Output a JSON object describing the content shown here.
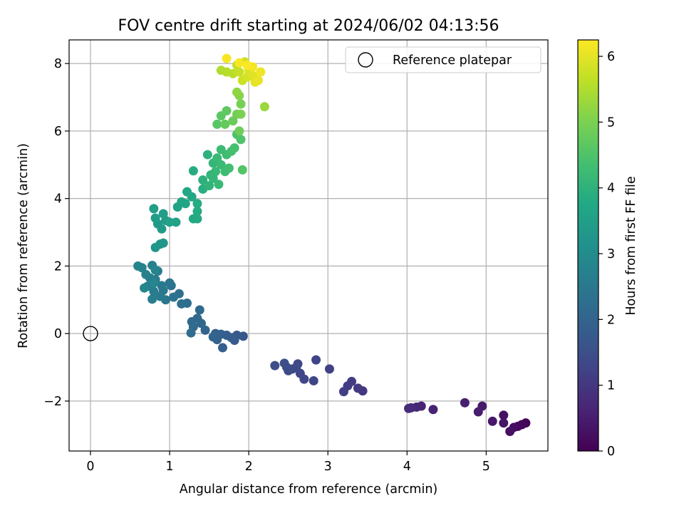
{
  "chart_data": {
    "type": "scatter",
    "title": "FOV centre drift starting at 2024/06/02 04:13:56",
    "xlabel": "Angular distance from reference (arcmin)",
    "ylabel": "Rotation from reference (arcmin)",
    "colorbar_label": "Hours from first FF file",
    "xlim": [
      -0.27,
      5.78
    ],
    "ylim": [
      -3.48,
      8.7
    ],
    "clim": [
      0,
      6.25
    ],
    "x_ticks": [
      0,
      1,
      2,
      3,
      4,
      5
    ],
    "y_ticks": [
      -2,
      0,
      2,
      4,
      6,
      8
    ],
    "colorbar_ticks": [
      0,
      1,
      2,
      3,
      4,
      5,
      6
    ],
    "colormap": "viridis",
    "grid": true,
    "legend": {
      "position": "top-right",
      "entries": [
        "Reference platepar"
      ]
    },
    "reference_point": {
      "x": 0,
      "y": 0
    },
    "points": [
      {
        "x": 5.5,
        "y": -2.65,
        "h": 0.05
      },
      {
        "x": 5.45,
        "y": -2.7,
        "h": 0.1
      },
      {
        "x": 5.4,
        "y": -2.75,
        "h": 0.15
      },
      {
        "x": 5.35,
        "y": -2.78,
        "h": 0.2
      },
      {
        "x": 5.3,
        "y": -2.9,
        "h": 0.25
      },
      {
        "x": 5.22,
        "y": -2.42,
        "h": 0.3
      },
      {
        "x": 5.22,
        "y": -2.65,
        "h": 0.35
      },
      {
        "x": 5.08,
        "y": -2.6,
        "h": 0.4
      },
      {
        "x": 4.95,
        "y": -2.15,
        "h": 0.45
      },
      {
        "x": 4.9,
        "y": -2.32,
        "h": 0.5
      },
      {
        "x": 4.73,
        "y": -2.05,
        "h": 0.55
      },
      {
        "x": 4.33,
        "y": -2.25,
        "h": 0.6
      },
      {
        "x": 4.18,
        "y": -2.15,
        "h": 0.65
      },
      {
        "x": 4.12,
        "y": -2.18,
        "h": 0.7
      },
      {
        "x": 4.05,
        "y": -2.2,
        "h": 0.75
      },
      {
        "x": 4.02,
        "y": -2.22,
        "h": 0.8
      },
      {
        "x": 3.44,
        "y": -1.7,
        "h": 1.0
      },
      {
        "x": 3.38,
        "y": -1.62,
        "h": 1.05
      },
      {
        "x": 3.3,
        "y": -1.42,
        "h": 1.1
      },
      {
        "x": 3.25,
        "y": -1.55,
        "h": 1.12
      },
      {
        "x": 3.2,
        "y": -1.72,
        "h": 1.15
      },
      {
        "x": 3.02,
        "y": -1.05,
        "h": 1.2
      },
      {
        "x": 2.85,
        "y": -0.78,
        "h": 1.25
      },
      {
        "x": 2.82,
        "y": -1.4,
        "h": 1.28
      },
      {
        "x": 2.7,
        "y": -1.35,
        "h": 1.3
      },
      {
        "x": 2.65,
        "y": -1.18,
        "h": 1.33
      },
      {
        "x": 2.62,
        "y": -0.9,
        "h": 1.36
      },
      {
        "x": 2.6,
        "y": -1.0,
        "h": 1.38
      },
      {
        "x": 2.55,
        "y": -1.05,
        "h": 1.4
      },
      {
        "x": 2.5,
        "y": -1.1,
        "h": 1.42
      },
      {
        "x": 2.48,
        "y": -1.0,
        "h": 1.45
      },
      {
        "x": 2.45,
        "y": -0.88,
        "h": 1.47
      },
      {
        "x": 2.33,
        "y": -0.95,
        "h": 1.5
      },
      {
        "x": 1.93,
        "y": -0.08,
        "h": 1.7
      },
      {
        "x": 1.85,
        "y": -0.05,
        "h": 1.75
      },
      {
        "x": 1.82,
        "y": -0.2,
        "h": 1.78
      },
      {
        "x": 1.78,
        "y": -0.12,
        "h": 1.82
      },
      {
        "x": 1.72,
        "y": -0.05,
        "h": 1.85
      },
      {
        "x": 1.67,
        "y": -0.42,
        "h": 1.88
      },
      {
        "x": 1.65,
        "y": -0.02,
        "h": 1.9
      },
      {
        "x": 1.6,
        "y": -0.18,
        "h": 1.93
      },
      {
        "x": 1.58,
        "y": 0.0,
        "h": 1.96
      },
      {
        "x": 1.55,
        "y": -0.1,
        "h": 2.0
      },
      {
        "x": 1.45,
        "y": 0.1,
        "h": 2.05
      },
      {
        "x": 1.4,
        "y": 0.3,
        "h": 2.08
      },
      {
        "x": 1.38,
        "y": 0.7,
        "h": 2.1
      },
      {
        "x": 1.35,
        "y": 0.45,
        "h": 2.12
      },
      {
        "x": 1.3,
        "y": 0.2,
        "h": 2.15
      },
      {
        "x": 1.28,
        "y": 0.35,
        "h": 2.18
      },
      {
        "x": 1.27,
        "y": 0.02,
        "h": 2.2
      },
      {
        "x": 1.22,
        "y": 0.9,
        "h": 2.25
      },
      {
        "x": 1.15,
        "y": 0.88,
        "h": 2.28
      },
      {
        "x": 1.12,
        "y": 1.18,
        "h": 2.32
      },
      {
        "x": 1.05,
        "y": 1.08,
        "h": 2.35
      },
      {
        "x": 1.02,
        "y": 1.42,
        "h": 2.4
      },
      {
        "x": 1.0,
        "y": 1.5,
        "h": 2.42
      },
      {
        "x": 0.95,
        "y": 1.0,
        "h": 2.45
      },
      {
        "x": 0.92,
        "y": 1.28,
        "h": 2.48
      },
      {
        "x": 0.9,
        "y": 1.42,
        "h": 2.5
      },
      {
        "x": 0.88,
        "y": 1.1,
        "h": 2.52
      },
      {
        "x": 0.85,
        "y": 1.85,
        "h": 2.55
      },
      {
        "x": 0.82,
        "y": 1.6,
        "h": 2.58
      },
      {
        "x": 0.8,
        "y": 1.25,
        "h": 2.6
      },
      {
        "x": 0.78,
        "y": 1.02,
        "h": 2.62
      },
      {
        "x": 0.75,
        "y": 1.65,
        "h": 2.65
      },
      {
        "x": 0.72,
        "y": 1.4,
        "h": 2.68
      },
      {
        "x": 0.78,
        "y": 2.02,
        "h": 2.7
      },
      {
        "x": 0.7,
        "y": 1.75,
        "h": 2.72
      },
      {
        "x": 0.65,
        "y": 1.95,
        "h": 2.75
      },
      {
        "x": 0.6,
        "y": 2.0,
        "h": 2.78
      },
      {
        "x": 0.82,
        "y": 1.88,
        "h": 2.8
      },
      {
        "x": 0.68,
        "y": 1.35,
        "h": 2.82
      },
      {
        "x": 0.8,
        "y": 1.5,
        "h": 2.85
      },
      {
        "x": 0.82,
        "y": 2.55,
        "h": 3.2
      },
      {
        "x": 0.88,
        "y": 2.65,
        "h": 3.25
      },
      {
        "x": 0.92,
        "y": 2.68,
        "h": 3.3
      },
      {
        "x": 0.85,
        "y": 3.25,
        "h": 3.35
      },
      {
        "x": 0.9,
        "y": 3.1,
        "h": 3.4
      },
      {
        "x": 0.95,
        "y": 3.35,
        "h": 3.42
      },
      {
        "x": 0.82,
        "y": 3.42,
        "h": 3.45
      },
      {
        "x": 0.8,
        "y": 3.7,
        "h": 3.48
      },
      {
        "x": 0.92,
        "y": 3.55,
        "h": 3.5
      },
      {
        "x": 1.0,
        "y": 3.3,
        "h": 3.55
      },
      {
        "x": 1.08,
        "y": 3.3,
        "h": 3.58
      },
      {
        "x": 1.1,
        "y": 3.75,
        "h": 3.6
      },
      {
        "x": 1.15,
        "y": 3.9,
        "h": 3.63
      },
      {
        "x": 1.2,
        "y": 3.85,
        "h": 3.66
      },
      {
        "x": 1.22,
        "y": 4.2,
        "h": 3.7
      },
      {
        "x": 1.28,
        "y": 4.05,
        "h": 3.73
      },
      {
        "x": 1.3,
        "y": 3.4,
        "h": 3.76
      },
      {
        "x": 1.35,
        "y": 3.4,
        "h": 3.78
      },
      {
        "x": 1.35,
        "y": 3.62,
        "h": 3.8
      },
      {
        "x": 1.35,
        "y": 3.85,
        "h": 3.82
      },
      {
        "x": 1.3,
        "y": 4.82,
        "h": 3.85
      },
      {
        "x": 1.42,
        "y": 4.28,
        "h": 3.9
      },
      {
        "x": 1.42,
        "y": 4.55,
        "h": 3.95
      },
      {
        "x": 1.48,
        "y": 5.3,
        "h": 4.0
      },
      {
        "x": 1.5,
        "y": 4.38,
        "h": 4.05
      },
      {
        "x": 1.52,
        "y": 4.7,
        "h": 4.08
      },
      {
        "x": 1.55,
        "y": 5.05,
        "h": 4.1
      },
      {
        "x": 1.55,
        "y": 4.6,
        "h": 4.12
      },
      {
        "x": 1.58,
        "y": 4.8,
        "h": 4.15
      },
      {
        "x": 1.6,
        "y": 5.2,
        "h": 4.18
      },
      {
        "x": 1.62,
        "y": 4.42,
        "h": 4.2
      },
      {
        "x": 1.65,
        "y": 5.0,
        "h": 4.22
      },
      {
        "x": 1.65,
        "y": 5.45,
        "h": 4.25
      },
      {
        "x": 1.7,
        "y": 4.8,
        "h": 4.28
      },
      {
        "x": 1.72,
        "y": 5.3,
        "h": 4.3
      },
      {
        "x": 1.75,
        "y": 4.9,
        "h": 4.33
      },
      {
        "x": 1.78,
        "y": 5.4,
        "h": 4.36
      },
      {
        "x": 1.82,
        "y": 5.5,
        "h": 4.4
      },
      {
        "x": 1.85,
        "y": 5.9,
        "h": 4.45
      },
      {
        "x": 1.9,
        "y": 5.75,
        "h": 4.5
      },
      {
        "x": 1.92,
        "y": 4.85,
        "h": 4.55
      },
      {
        "x": 1.6,
        "y": 6.2,
        "h": 4.6
      },
      {
        "x": 1.65,
        "y": 6.45,
        "h": 4.65
      },
      {
        "x": 1.72,
        "y": 6.6,
        "h": 4.7
      },
      {
        "x": 1.7,
        "y": 6.2,
        "h": 4.75
      },
      {
        "x": 1.8,
        "y": 6.3,
        "h": 4.8
      },
      {
        "x": 1.88,
        "y": 6.0,
        "h": 4.85
      },
      {
        "x": 1.85,
        "y": 6.5,
        "h": 4.9
      },
      {
        "x": 1.9,
        "y": 6.8,
        "h": 4.95
      },
      {
        "x": 1.9,
        "y": 6.5,
        "h": 5.0
      },
      {
        "x": 1.88,
        "y": 7.05,
        "h": 5.1
      },
      {
        "x": 1.85,
        "y": 7.15,
        "h": 5.2
      },
      {
        "x": 2.2,
        "y": 6.72,
        "h": 5.3
      },
      {
        "x": 1.65,
        "y": 7.8,
        "h": 5.5
      },
      {
        "x": 1.72,
        "y": 7.75,
        "h": 5.55
      },
      {
        "x": 1.8,
        "y": 7.7,
        "h": 5.6
      },
      {
        "x": 1.85,
        "y": 7.95,
        "h": 5.65
      },
      {
        "x": 1.88,
        "y": 7.75,
        "h": 5.7
      },
      {
        "x": 1.92,
        "y": 7.5,
        "h": 5.75
      },
      {
        "x": 1.95,
        "y": 8.05,
        "h": 5.8
      },
      {
        "x": 1.98,
        "y": 7.6,
        "h": 5.85
      },
      {
        "x": 2.0,
        "y": 7.8,
        "h": 5.9
      },
      {
        "x": 2.05,
        "y": 7.65,
        "h": 5.95
      },
      {
        "x": 2.08,
        "y": 7.45,
        "h": 6.0
      },
      {
        "x": 2.12,
        "y": 7.5,
        "h": 6.05
      },
      {
        "x": 2.15,
        "y": 7.75,
        "h": 6.1
      },
      {
        "x": 2.05,
        "y": 7.9,
        "h": 6.15
      },
      {
        "x": 1.72,
        "y": 8.15,
        "h": 6.2
      },
      {
        "x": 1.88,
        "y": 8.02,
        "h": 6.2
      },
      {
        "x": 1.98,
        "y": 7.95,
        "h": 6.22
      }
    ]
  }
}
